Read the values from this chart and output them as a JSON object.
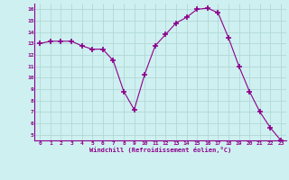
{
  "x": [
    0,
    1,
    2,
    3,
    4,
    5,
    6,
    7,
    8,
    9,
    10,
    11,
    12,
    13,
    14,
    15,
    16,
    17,
    18,
    19,
    20,
    21,
    22,
    23
  ],
  "y": [
    13.0,
    13.2,
    13.2,
    13.2,
    12.8,
    12.5,
    12.5,
    11.5,
    8.8,
    7.2,
    10.3,
    12.8,
    13.8,
    14.8,
    15.3,
    16.0,
    16.1,
    15.7,
    13.5,
    11.0,
    8.8,
    7.0,
    5.6,
    4.5
  ],
  "line_color": "#8B008B",
  "marker": "+",
  "marker_size": 4,
  "bg_color": "#cff0f0",
  "grid_color": "#b0d8d8",
  "xlabel": "Windchill (Refroidissement éolien,°C)",
  "xlabel_color": "#8B008B",
  "tick_label_color": "#8B008B",
  "xlim": [
    -0.5,
    23.5
  ],
  "ylim": [
    4.5,
    16.5
  ],
  "yticks": [
    5,
    6,
    7,
    8,
    9,
    10,
    11,
    12,
    13,
    14,
    15,
    16
  ],
  "xticks": [
    0,
    1,
    2,
    3,
    4,
    5,
    6,
    7,
    8,
    9,
    10,
    11,
    12,
    13,
    14,
    15,
    16,
    17,
    18,
    19,
    20,
    21,
    22,
    23
  ],
  "xtick_labels": [
    "0",
    "1",
    "2",
    "3",
    "4",
    "5",
    "6",
    "7",
    "8",
    "9",
    "10",
    "11",
    "12",
    "13",
    "14",
    "15",
    "16",
    "17",
    "18",
    "19",
    "20",
    "21",
    "22",
    "23"
  ],
  "ytick_labels": [
    "5",
    "6",
    "7",
    "8",
    "9",
    "10",
    "11",
    "12",
    "13",
    "14",
    "15",
    "16"
  ]
}
